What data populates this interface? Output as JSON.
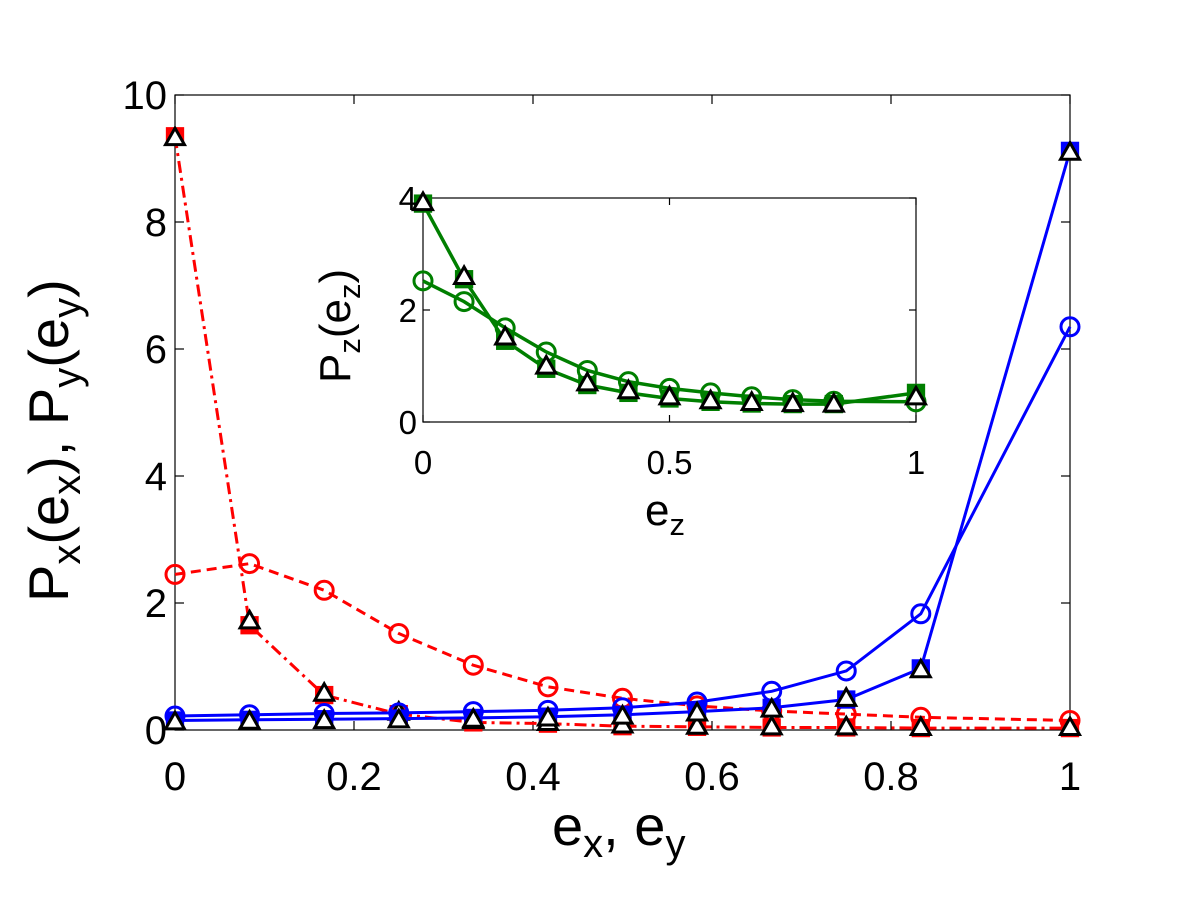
{
  "chart_data": [
    {
      "type": "line",
      "xlabel": "e_x, e_y",
      "ylabel": "P_x(e_x), P_y(e_y)",
      "xlim": [
        0,
        1
      ],
      "ylim": [
        0,
        10
      ],
      "xticks": [
        0,
        0.2,
        0.4,
        0.6,
        0.8,
        1
      ],
      "yticks": [
        0,
        2,
        4,
        6,
        8,
        10
      ],
      "xtick_labels": [
        "0",
        "0.2",
        "0.4",
        "0.6",
        "0.8",
        "1"
      ],
      "ytick_labels": [
        "0",
        "2",
        "4",
        "6",
        "8",
        "10"
      ],
      "grid": false,
      "x": [
        0,
        0.0833,
        0.1667,
        0.25,
        0.3333,
        0.4167,
        0.5,
        0.5833,
        0.6667,
        0.75,
        0.8333,
        1
      ],
      "series": [
        {
          "color": "#ff0000",
          "linestyle": "dashed",
          "marker": "circle",
          "values": [
            2.45,
            2.62,
            2.2,
            1.52,
            1.02,
            0.68,
            0.5,
            0.38,
            0.3,
            0.25,
            0.2,
            0.15
          ]
        },
        {
          "color": "#ff0000",
          "linestyle": "dashdot",
          "marker": "square",
          "values": [
            9.35,
            1.65,
            0.55,
            0.25,
            0.12,
            0.1,
            0.06,
            0.05,
            0.04,
            0.04,
            0.03,
            0.03
          ]
        },
        {
          "color": "#000000",
          "linestyle": "none",
          "marker": "triangle",
          "values": [
            9.33,
            1.72,
            0.58,
            0.28,
            0.15,
            0.12,
            0.08,
            0.06,
            0.05,
            0.05,
            0.04,
            0.04
          ]
        },
        {
          "color": "#0000ff",
          "linestyle": "solid",
          "marker": "circle",
          "values": [
            0.22,
            0.24,
            0.26,
            0.27,
            0.29,
            0.31,
            0.35,
            0.44,
            0.61,
            0.93,
            1.83,
            6.35
          ]
        },
        {
          "color": "#0000ff",
          "linestyle": "solid",
          "marker": "square",
          "values": [
            0.15,
            0.16,
            0.17,
            0.18,
            0.19,
            0.21,
            0.24,
            0.29,
            0.35,
            0.48,
            0.97,
            9.12
          ]
        },
        {
          "color": "#000000",
          "linestyle": "none",
          "marker": "triangle",
          "values": [
            0.13,
            0.14,
            0.15,
            0.16,
            0.17,
            0.19,
            0.22,
            0.27,
            0.33,
            0.5,
            0.95,
            9.1
          ]
        }
      ]
    },
    {
      "type": "line",
      "xlabel": "e_z",
      "ylabel": "P_z(e_z)",
      "xlim": [
        0,
        1
      ],
      "ylim": [
        0,
        4
      ],
      "xticks": [
        0,
        0.5,
        1
      ],
      "yticks": [
        0,
        2,
        4
      ],
      "xtick_labels": [
        "0",
        "0.5",
        "1"
      ],
      "ytick_labels": [
        "0",
        "2",
        "4"
      ],
      "grid": false,
      "x": [
        0,
        0.0833,
        0.1667,
        0.25,
        0.3333,
        0.4167,
        0.5,
        0.5833,
        0.6667,
        0.75,
        0.8333,
        1
      ],
      "series": [
        {
          "color": "#007f00",
          "linestyle": "solid",
          "marker": "circle",
          "values": [
            2.52,
            2.15,
            1.68,
            1.25,
            0.92,
            0.72,
            0.6,
            0.52,
            0.45,
            0.4,
            0.37,
            0.36
          ]
        },
        {
          "color": "#007f00",
          "linestyle": "solid",
          "marker": "square",
          "values": [
            3.9,
            2.55,
            1.45,
            0.95,
            0.66,
            0.52,
            0.42,
            0.36,
            0.33,
            0.32,
            0.32,
            0.52
          ]
        },
        {
          "color": "#000000",
          "linestyle": "none",
          "marker": "triangle",
          "values": [
            3.92,
            2.6,
            1.52,
            1.0,
            0.7,
            0.56,
            0.45,
            0.38,
            0.35,
            0.33,
            0.32,
            0.45
          ]
        }
      ]
    }
  ],
  "labels": {
    "main_x_base1": "e",
    "main_x_sub1": "x",
    "main_x_sep": ", ",
    "main_x_base2": "e",
    "main_x_sub2": "y",
    "main_y_base1": "P",
    "main_y_sub1": "x",
    "main_y_mid1": "(e",
    "main_y_sub2": "x",
    "main_y_mid2": "), P",
    "main_y_sub3": "y",
    "main_y_mid3": "(e",
    "main_y_sub4": "y",
    "main_y_end": ")",
    "inset_x_base": "e",
    "inset_x_sub": "z",
    "inset_y_base1": "P",
    "inset_y_sub1": "z",
    "inset_y_mid": "(e",
    "inset_y_sub2": "z",
    "inset_y_end": ")"
  }
}
